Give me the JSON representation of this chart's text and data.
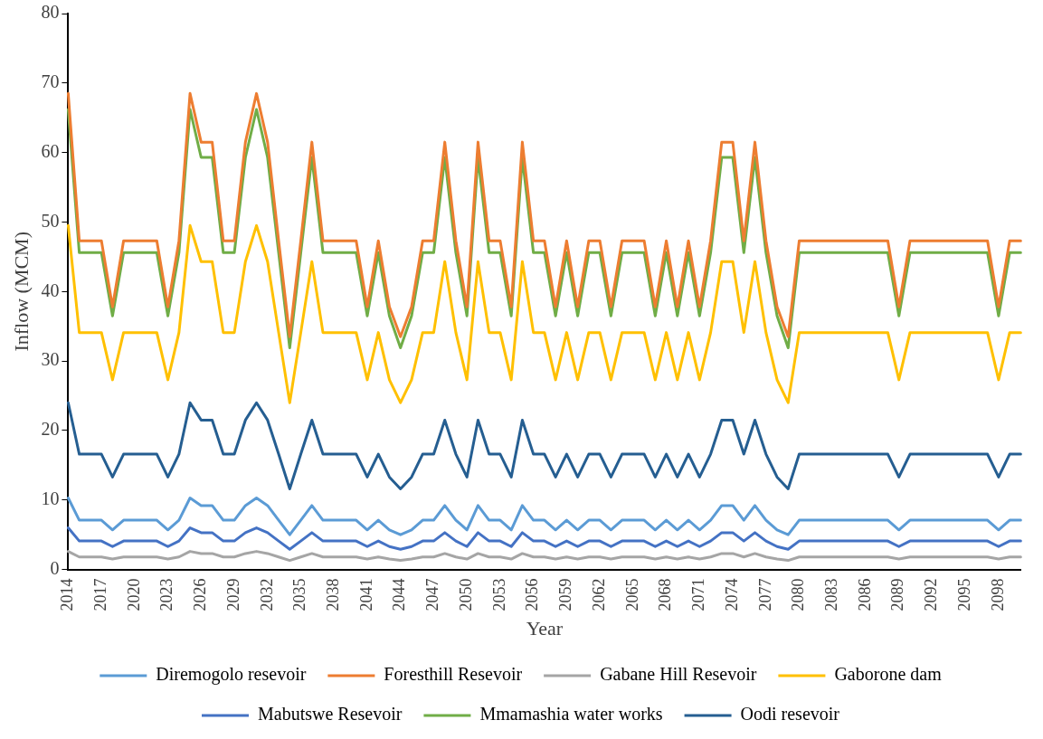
{
  "chart_data": {
    "type": "line",
    "xlabel": "Year",
    "ylabel": "Inflow (MCM)",
    "ylim": [
      0,
      80
    ],
    "yticks": [
      0,
      10,
      20,
      30,
      40,
      50,
      60,
      70,
      80
    ],
    "grid": false,
    "legend": "bottom",
    "marker": "none",
    "line_style": "solid",
    "categories": [
      "2014",
      null,
      null,
      "2017",
      null,
      null,
      "2020",
      null,
      null,
      "2023",
      null,
      null,
      "2026",
      null,
      null,
      "2029",
      null,
      null,
      "2032",
      null,
      null,
      "2035",
      null,
      null,
      "2038",
      null,
      null,
      "2041",
      null,
      null,
      "2044",
      null,
      null,
      "2047",
      null,
      null,
      "2050",
      null,
      null,
      "2053",
      null,
      null,
      "2056",
      null,
      null,
      "2059",
      null,
      null,
      "2062",
      null,
      null,
      "2065",
      null,
      null,
      "2068",
      null,
      null,
      "2071",
      null,
      null,
      "2074",
      null,
      null,
      "2077",
      null,
      null,
      "2080",
      null,
      null,
      "2083",
      null,
      null,
      "2086",
      null,
      null,
      "2089",
      null,
      null,
      "2092",
      null,
      null,
      "2095",
      null,
      null,
      "2098",
      null,
      null
    ],
    "series": [
      {
        "name": "Diremogolo resevoir",
        "color": "#5b9bd5",
        "values": [
          10.3,
          7.1,
          7.1,
          7.1,
          5.7,
          7.1,
          7.1,
          7.1,
          7.1,
          5.7,
          7.1,
          10.3,
          9.2,
          9.2,
          7.1,
          7.1,
          9.2,
          10.3,
          9.2,
          7.1,
          5.0,
          7.1,
          9.2,
          7.1,
          7.1,
          7.1,
          7.1,
          5.7,
          7.1,
          5.7,
          5.0,
          5.7,
          7.1,
          7.1,
          9.2,
          7.1,
          5.7,
          9.2,
          7.1,
          7.1,
          5.7,
          9.2,
          7.1,
          7.1,
          5.7,
          7.1,
          5.7,
          7.1,
          7.1,
          5.7,
          7.1,
          7.1,
          7.1,
          5.7,
          7.1,
          5.7,
          7.1,
          5.7,
          7.1,
          9.2,
          9.2,
          7.1,
          9.2,
          7.1,
          5.7,
          5.0,
          7.1,
          7.1,
          7.1,
          7.1,
          7.1,
          7.1,
          7.1,
          7.1,
          7.1,
          5.7,
          7.1,
          7.1,
          7.1,
          7.1,
          7.1,
          7.1,
          7.1,
          7.1,
          5.7,
          7.1,
          7.1
        ]
      },
      {
        "name": "Foresthill Resevoir",
        "color": "#ed7d31",
        "values": [
          68.5,
          47.3,
          47.3,
          47.3,
          37.8,
          47.3,
          47.3,
          47.3,
          47.3,
          37.8,
          47.3,
          68.5,
          61.5,
          61.5,
          47.3,
          47.3,
          61.5,
          68.5,
          61.5,
          47.3,
          33.5,
          47.3,
          61.5,
          47.3,
          47.3,
          47.3,
          47.3,
          37.8,
          47.3,
          37.8,
          33.5,
          37.8,
          47.3,
          47.3,
          61.5,
          47.3,
          37.8,
          61.5,
          47.3,
          47.3,
          37.8,
          61.5,
          47.3,
          47.3,
          37.8,
          47.3,
          37.8,
          47.3,
          47.3,
          37.8,
          47.3,
          47.3,
          47.3,
          37.8,
          47.3,
          37.8,
          47.3,
          37.8,
          47.3,
          61.5,
          61.5,
          47.3,
          61.5,
          47.3,
          37.8,
          33.5,
          47.3,
          47.3,
          47.3,
          47.3,
          47.3,
          47.3,
          47.3,
          47.3,
          47.3,
          37.8,
          47.3,
          47.3,
          47.3,
          47.3,
          47.3,
          47.3,
          47.3,
          47.3,
          37.8,
          47.3,
          47.3
        ]
      },
      {
        "name": "Gabane Hill Resevoir",
        "color": "#a5a5a5",
        "values": [
          2.6,
          1.8,
          1.8,
          1.8,
          1.5,
          1.8,
          1.8,
          1.8,
          1.8,
          1.5,
          1.8,
          2.6,
          2.3,
          2.3,
          1.8,
          1.8,
          2.3,
          2.6,
          2.3,
          1.8,
          1.3,
          1.8,
          2.3,
          1.8,
          1.8,
          1.8,
          1.8,
          1.5,
          1.8,
          1.5,
          1.3,
          1.5,
          1.8,
          1.8,
          2.3,
          1.8,
          1.5,
          2.3,
          1.8,
          1.8,
          1.5,
          2.3,
          1.8,
          1.8,
          1.5,
          1.8,
          1.5,
          1.8,
          1.8,
          1.5,
          1.8,
          1.8,
          1.8,
          1.5,
          1.8,
          1.5,
          1.8,
          1.5,
          1.8,
          2.3,
          2.3,
          1.8,
          2.3,
          1.8,
          1.5,
          1.3,
          1.8,
          1.8,
          1.8,
          1.8,
          1.8,
          1.8,
          1.8,
          1.8,
          1.8,
          1.5,
          1.8,
          1.8,
          1.8,
          1.8,
          1.8,
          1.8,
          1.8,
          1.8,
          1.5,
          1.8,
          1.8
        ]
      },
      {
        "name": "Gaborone dam",
        "color": "#ffc000",
        "values": [
          49.5,
          34.1,
          34.1,
          34.1,
          27.3,
          34.1,
          34.1,
          34.1,
          34.1,
          27.3,
          34.1,
          49.5,
          44.3,
          44.3,
          34.1,
          34.1,
          44.3,
          49.5,
          44.3,
          34.1,
          24.0,
          34.1,
          44.3,
          34.1,
          34.1,
          34.1,
          34.1,
          27.3,
          34.1,
          27.3,
          24.0,
          27.3,
          34.1,
          34.1,
          44.3,
          34.1,
          27.3,
          44.3,
          34.1,
          34.1,
          27.3,
          44.3,
          34.1,
          34.1,
          27.3,
          34.1,
          27.3,
          34.1,
          34.1,
          27.3,
          34.1,
          34.1,
          34.1,
          27.3,
          34.1,
          27.3,
          34.1,
          27.3,
          34.1,
          44.3,
          44.3,
          34.1,
          44.3,
          34.1,
          27.3,
          24.0,
          34.1,
          34.1,
          34.1,
          34.1,
          34.1,
          34.1,
          34.1,
          34.1,
          34.1,
          27.3,
          34.1,
          34.1,
          34.1,
          34.1,
          34.1,
          34.1,
          34.1,
          34.1,
          27.3,
          34.1,
          34.1
        ]
      },
      {
        "name": "Mabutswe Resevoir",
        "color": "#4472c4",
        "values": [
          6.0,
          4.1,
          4.1,
          4.1,
          3.3,
          4.1,
          4.1,
          4.1,
          4.1,
          3.3,
          4.1,
          6.0,
          5.3,
          5.3,
          4.1,
          4.1,
          5.3,
          6.0,
          5.3,
          4.1,
          2.9,
          4.1,
          5.3,
          4.1,
          4.1,
          4.1,
          4.1,
          3.3,
          4.1,
          3.3,
          2.9,
          3.3,
          4.1,
          4.1,
          5.3,
          4.1,
          3.3,
          5.3,
          4.1,
          4.1,
          3.3,
          5.3,
          4.1,
          4.1,
          3.3,
          4.1,
          3.3,
          4.1,
          4.1,
          3.3,
          4.1,
          4.1,
          4.1,
          3.3,
          4.1,
          3.3,
          4.1,
          3.3,
          4.1,
          5.3,
          5.3,
          4.1,
          5.3,
          4.1,
          3.3,
          2.9,
          4.1,
          4.1,
          4.1,
          4.1,
          4.1,
          4.1,
          4.1,
          4.1,
          4.1,
          3.3,
          4.1,
          4.1,
          4.1,
          4.1,
          4.1,
          4.1,
          4.1,
          4.1,
          3.3,
          4.1,
          4.1
        ]
      },
      {
        "name": "Mmamashia water works",
        "color": "#70ad47",
        "values": [
          66.2,
          45.6,
          45.6,
          45.6,
          36.5,
          45.6,
          45.6,
          45.6,
          45.6,
          36.5,
          45.6,
          66.2,
          59.3,
          59.3,
          45.6,
          45.6,
          59.3,
          66.2,
          59.3,
          45.6,
          31.9,
          45.6,
          59.3,
          45.6,
          45.6,
          45.6,
          45.6,
          36.5,
          45.6,
          36.5,
          31.9,
          36.5,
          45.6,
          45.6,
          59.3,
          45.6,
          36.5,
          59.3,
          45.6,
          45.6,
          36.5,
          59.3,
          45.6,
          45.6,
          36.5,
          45.6,
          36.5,
          45.6,
          45.6,
          36.5,
          45.6,
          45.6,
          45.6,
          36.5,
          45.6,
          36.5,
          45.6,
          36.5,
          45.6,
          59.3,
          59.3,
          45.6,
          59.3,
          45.6,
          36.5,
          31.9,
          45.6,
          45.6,
          45.6,
          45.6,
          45.6,
          45.6,
          45.6,
          45.6,
          45.6,
          36.5,
          45.6,
          45.6,
          45.6,
          45.6,
          45.6,
          45.6,
          45.6,
          45.6,
          36.5,
          45.6,
          45.6
        ]
      },
      {
        "name": "Oodi resevoir",
        "color": "#255e91",
        "values": [
          24.0,
          16.6,
          16.6,
          16.6,
          13.3,
          16.6,
          16.6,
          16.6,
          16.6,
          13.3,
          16.6,
          24.0,
          21.5,
          21.5,
          16.6,
          16.6,
          21.5,
          24.0,
          21.5,
          16.6,
          11.6,
          16.6,
          21.5,
          16.6,
          16.6,
          16.6,
          16.6,
          13.3,
          16.6,
          13.3,
          11.6,
          13.3,
          16.6,
          16.6,
          21.5,
          16.6,
          13.3,
          21.5,
          16.6,
          16.6,
          13.3,
          21.5,
          16.6,
          16.6,
          13.3,
          16.6,
          13.3,
          16.6,
          16.6,
          13.3,
          16.6,
          16.6,
          16.6,
          13.3,
          16.6,
          13.3,
          16.6,
          13.3,
          16.6,
          21.5,
          21.5,
          16.6,
          21.5,
          16.6,
          13.3,
          11.6,
          16.6,
          16.6,
          16.6,
          16.6,
          16.6,
          16.6,
          16.6,
          16.6,
          16.6,
          13.3,
          16.6,
          16.6,
          16.6,
          16.6,
          16.6,
          16.6,
          16.6,
          16.6,
          13.3,
          16.6,
          16.6
        ]
      }
    ]
  }
}
